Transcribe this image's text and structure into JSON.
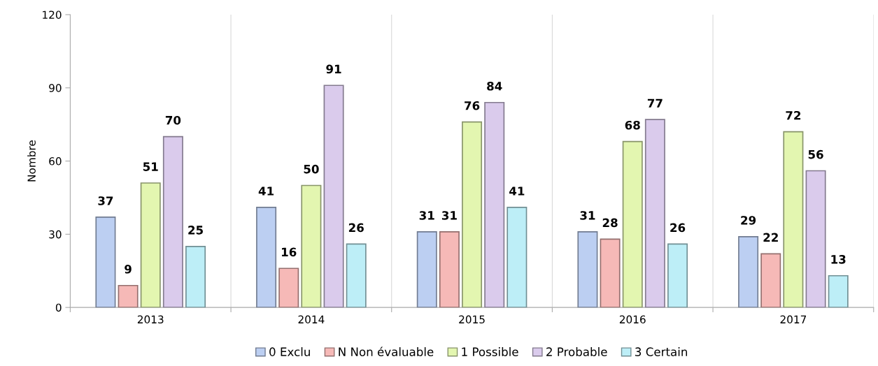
{
  "chart_data": {
    "type": "bar",
    "ylabel": "Nombre",
    "categories": [
      "2013",
      "2014",
      "2015",
      "2016",
      "2017"
    ],
    "series": [
      {
        "name": "0 Exclu",
        "color": "#bccff2",
        "values": [
          37,
          41,
          31,
          31,
          29
        ]
      },
      {
        "name": "N Non évaluable",
        "color": "#f6b9b7",
        "values": [
          9,
          16,
          31,
          28,
          22
        ]
      },
      {
        "name": "1 Possible",
        "color": "#e3f6b0",
        "values": [
          51,
          50,
          76,
          68,
          72
        ]
      },
      {
        "name": "2 Probable",
        "color": "#dacbec",
        "values": [
          70,
          91,
          84,
          77,
          56
        ]
      },
      {
        "name": "3 Certain",
        "color": "#bdeef7",
        "values": [
          25,
          26,
          41,
          26,
          13
        ]
      }
    ],
    "ylim": [
      0,
      120
    ],
    "yticks": [
      0,
      30,
      60,
      90,
      120
    ],
    "grid": "x",
    "legend": "bottom",
    "data_labels": true
  }
}
